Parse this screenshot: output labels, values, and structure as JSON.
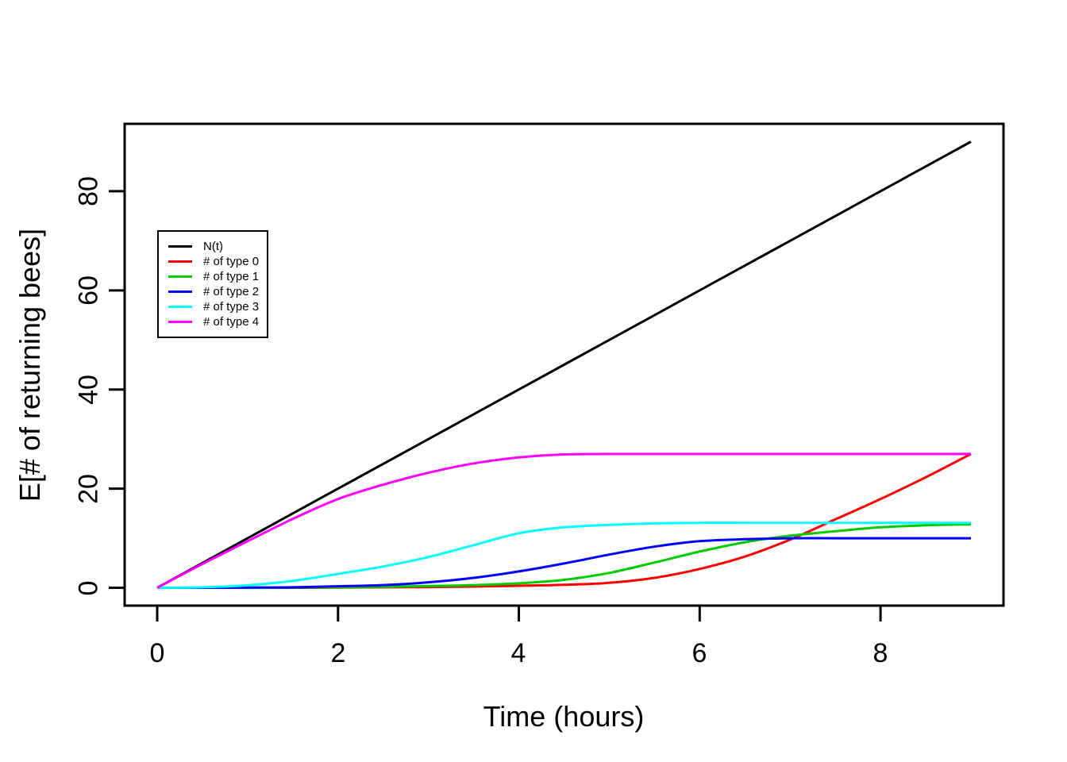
{
  "figure": {
    "background": "#FFFFFF",
    "foreground": "#000000"
  },
  "chart_data": {
    "type": "line",
    "title": "",
    "xlabel": "Time (hours)",
    "ylabel": "E[# of returning bees]",
    "grid": false,
    "legend_position": "upper-left-inset",
    "x_axis": {
      "ticks": [
        "0",
        "2",
        "4",
        "6",
        "8"
      ],
      "tick_values": [
        0,
        2,
        4,
        6,
        8
      ],
      "range_shown": [
        -0.36,
        9.36
      ]
    },
    "y_axis": {
      "ticks": [
        "0",
        "20",
        "40",
        "60",
        "80"
      ],
      "tick_values": [
        0,
        20,
        40,
        60,
        80
      ],
      "range_shown": [
        -3.6,
        93.6
      ]
    },
    "x": [
      0,
      0.5,
      1,
      1.5,
      2,
      2.5,
      3,
      3.5,
      4,
      4.5,
      5,
      5.5,
      6,
      6.5,
      7,
      7.5,
      8,
      8.5,
      9
    ],
    "series": [
      {
        "name": "N(t)",
        "color": "#000000",
        "values": [
          0,
          5,
          10,
          15,
          20,
          25,
          30,
          35,
          40,
          45,
          50,
          55,
          60,
          65,
          70,
          75,
          80,
          85,
          90
        ]
      },
      {
        "name": "# of type 0",
        "color": "#FF0000",
        "values": [
          0,
          0,
          0,
          0,
          0.05,
          0.1,
          0.15,
          0.25,
          0.4,
          0.6,
          1.0,
          2.0,
          3.8,
          6.3,
          9.7,
          13.8,
          17.9,
          22.3,
          27
        ]
      },
      {
        "name": "# of type 1",
        "color": "#00CD00",
        "values": [
          0,
          0,
          0,
          0.05,
          0.1,
          0.2,
          0.35,
          0.55,
          0.9,
          1.6,
          3.0,
          5.1,
          7.3,
          9.2,
          10.5,
          11.4,
          12.2,
          12.6,
          12.8
        ]
      },
      {
        "name": "# of type 2",
        "color": "#0000FF",
        "values": [
          0,
          0,
          0.05,
          0.1,
          0.3,
          0.55,
          1.1,
          2.0,
          3.3,
          4.9,
          6.7,
          8.3,
          9.4,
          9.8,
          10,
          10,
          10,
          10,
          10
        ]
      },
      {
        "name": "# of type 3",
        "color": "#00FFFF",
        "values": [
          0,
          0.1,
          0.5,
          1.4,
          2.8,
          4.3,
          6.2,
          8.6,
          11.0,
          12.2,
          12.7,
          13.0,
          13.1,
          13.1,
          13.1,
          13.1,
          13.1,
          13.1,
          13.1
        ]
      },
      {
        "name": "# of type 4",
        "color": "#FF00FF",
        "values": [
          0,
          4.8,
          9.4,
          13.9,
          17.9,
          20.8,
          23.2,
          25.1,
          26.3,
          26.9,
          27,
          27,
          27,
          27,
          27,
          27,
          27,
          27,
          27
        ]
      }
    ]
  }
}
